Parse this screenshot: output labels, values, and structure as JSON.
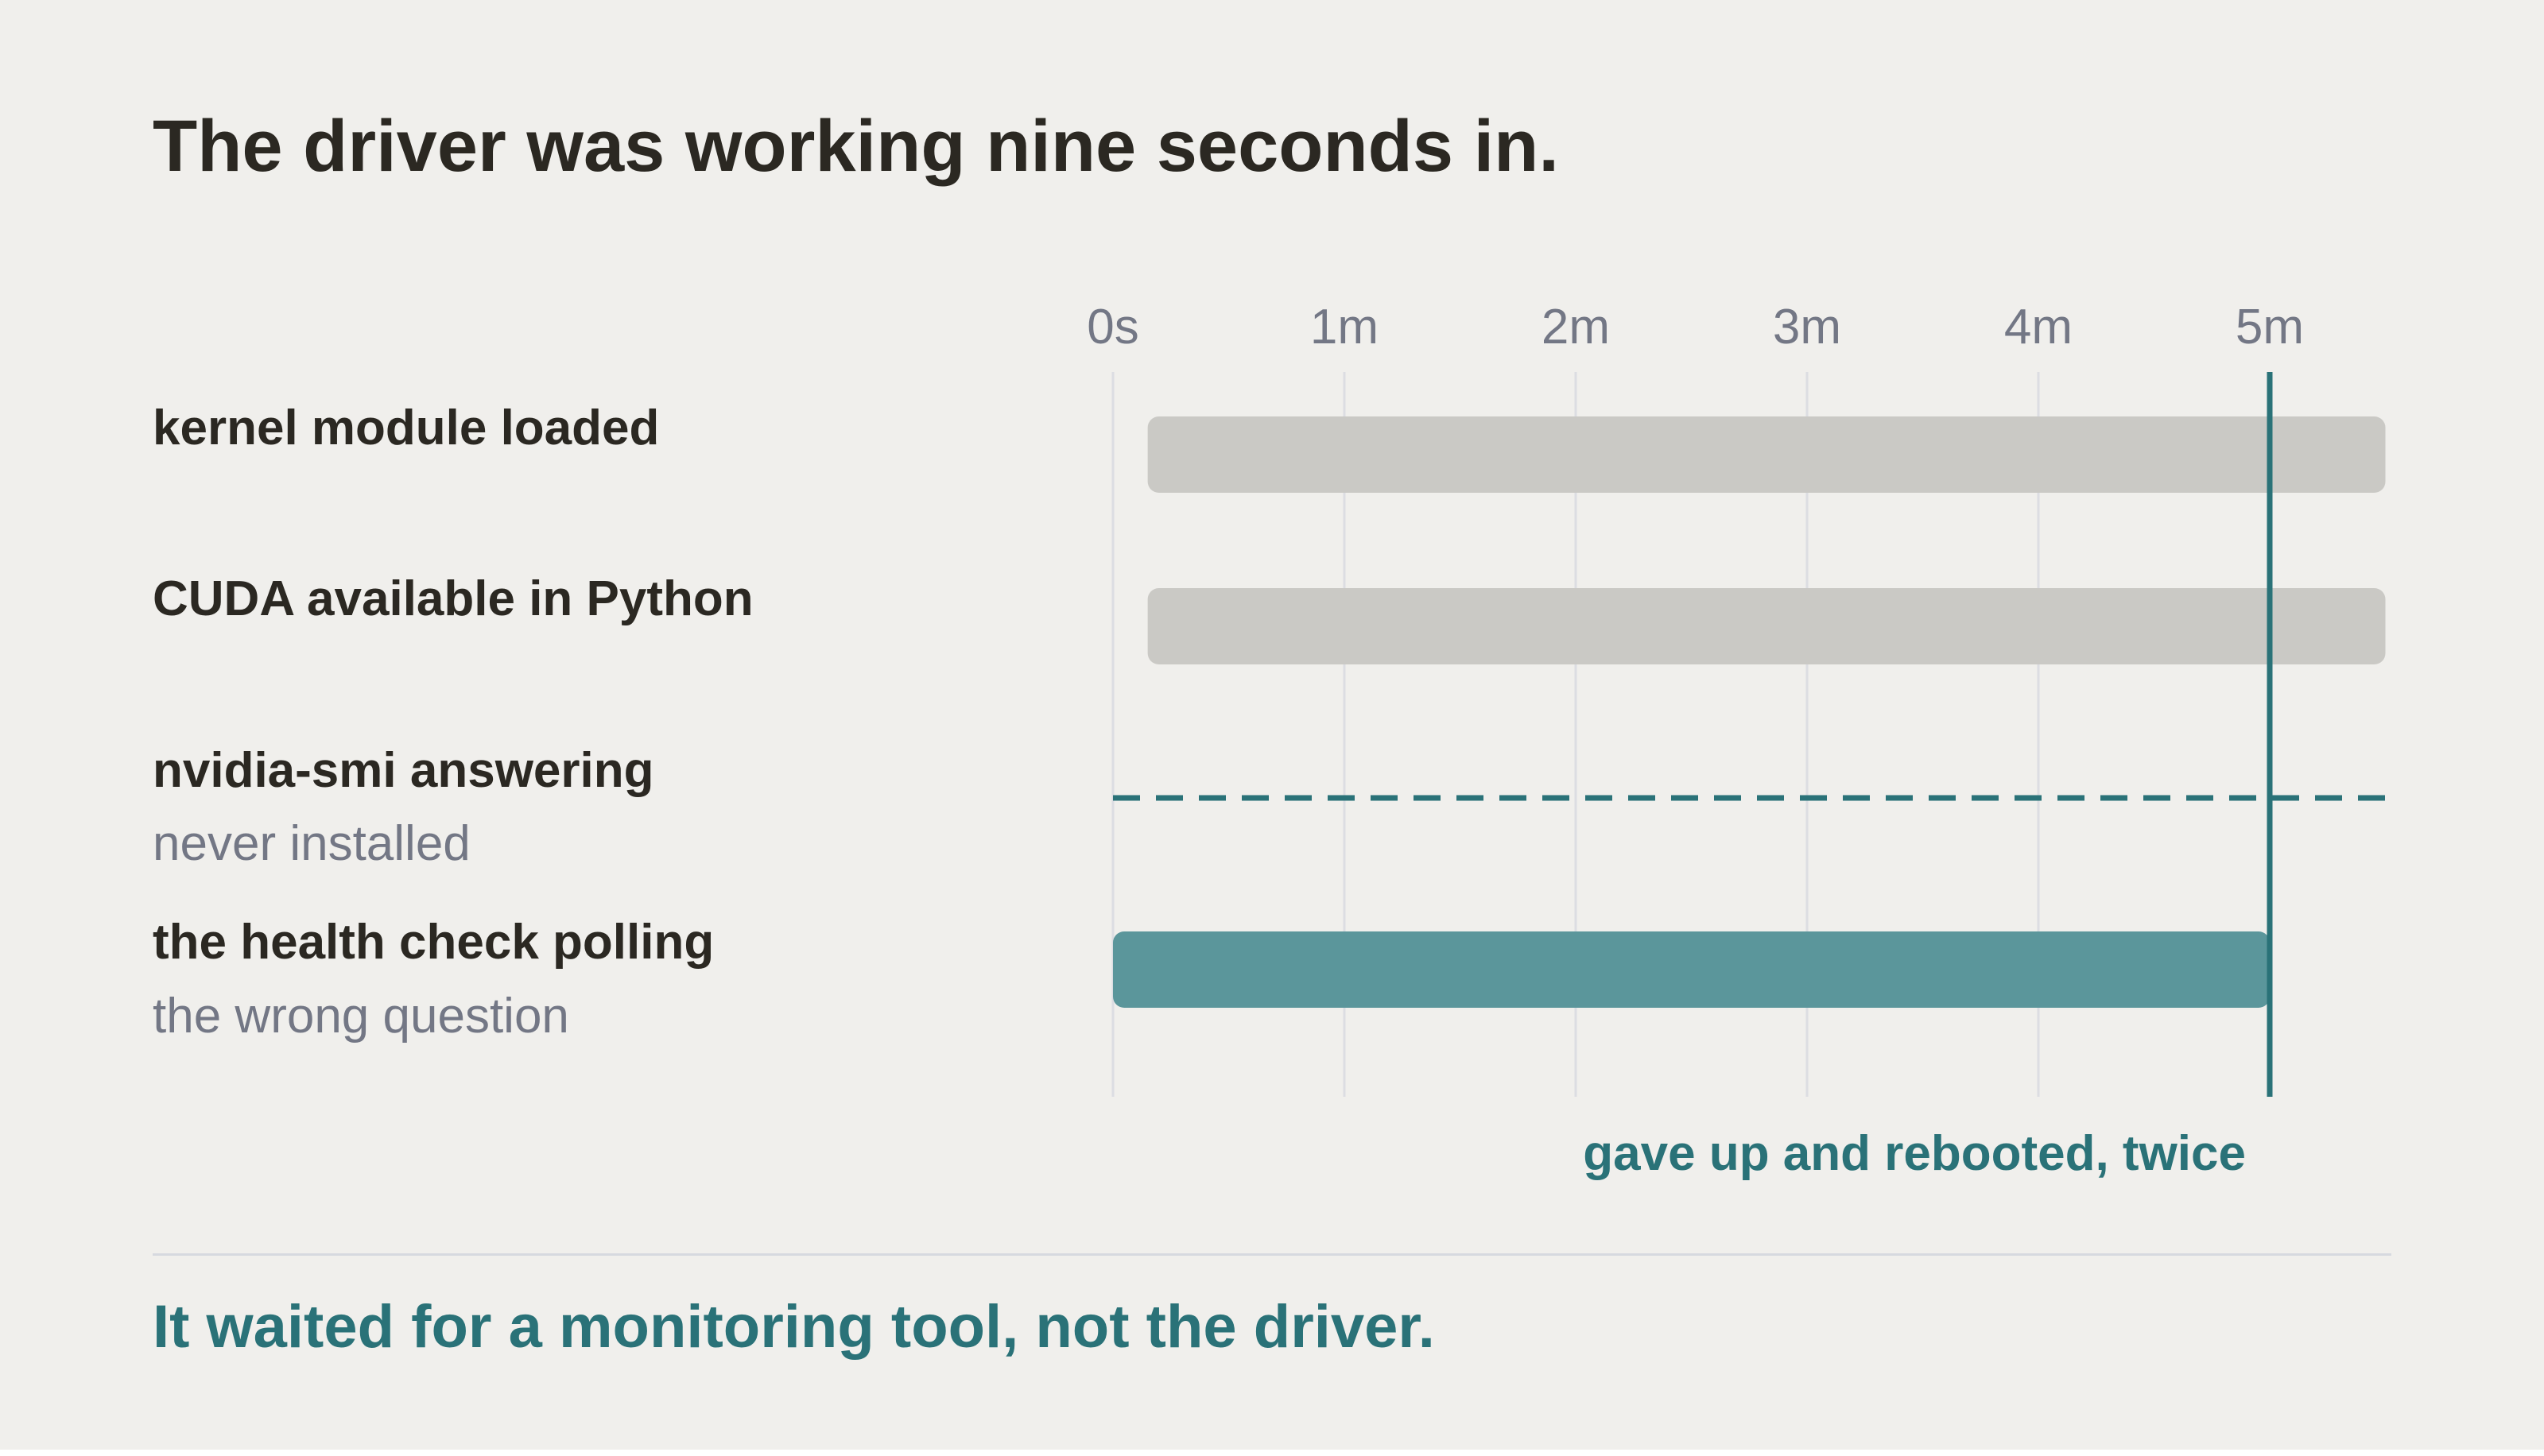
{
  "title": "The driver was working nine seconds in.",
  "footer": "It waited for a monitoring tool, not the driver.",
  "colors": {
    "background": "#f0efec",
    "text": "#2b2822",
    "muted": "#737785",
    "accent": "#2a7278",
    "neutral_bar": "#cac9c5",
    "accent_bar": "#5b969b",
    "gridline": "#dcdde2"
  },
  "chart_data": {
    "type": "bar",
    "orientation": "horizontal",
    "x_unit": "seconds",
    "xlim": [
      0,
      330
    ],
    "x_ticks": [
      {
        "value": 0,
        "label": "0s"
      },
      {
        "value": 60,
        "label": "1m"
      },
      {
        "value": 120,
        "label": "2m"
      },
      {
        "value": 180,
        "label": "3m"
      },
      {
        "value": 240,
        "label": "4m"
      },
      {
        "value": 300,
        "label": "5m"
      }
    ],
    "grid": true,
    "rows": [
      {
        "label": "kernel module loaded",
        "sublabel": "",
        "start": 9,
        "end": 330,
        "style": "neutral"
      },
      {
        "label": "CUDA available in Python",
        "sublabel": "",
        "start": 9,
        "end": 330,
        "style": "neutral"
      },
      {
        "label": "nvidia-smi answering",
        "sublabel": "never installed",
        "start": 0,
        "end": 330,
        "style": "dashed"
      },
      {
        "label": "the health check polling",
        "sublabel": "the wrong question",
        "start": 0,
        "end": 300,
        "style": "accent"
      }
    ],
    "marker": {
      "value": 300,
      "label": "gave up and rebooted, twice"
    }
  }
}
